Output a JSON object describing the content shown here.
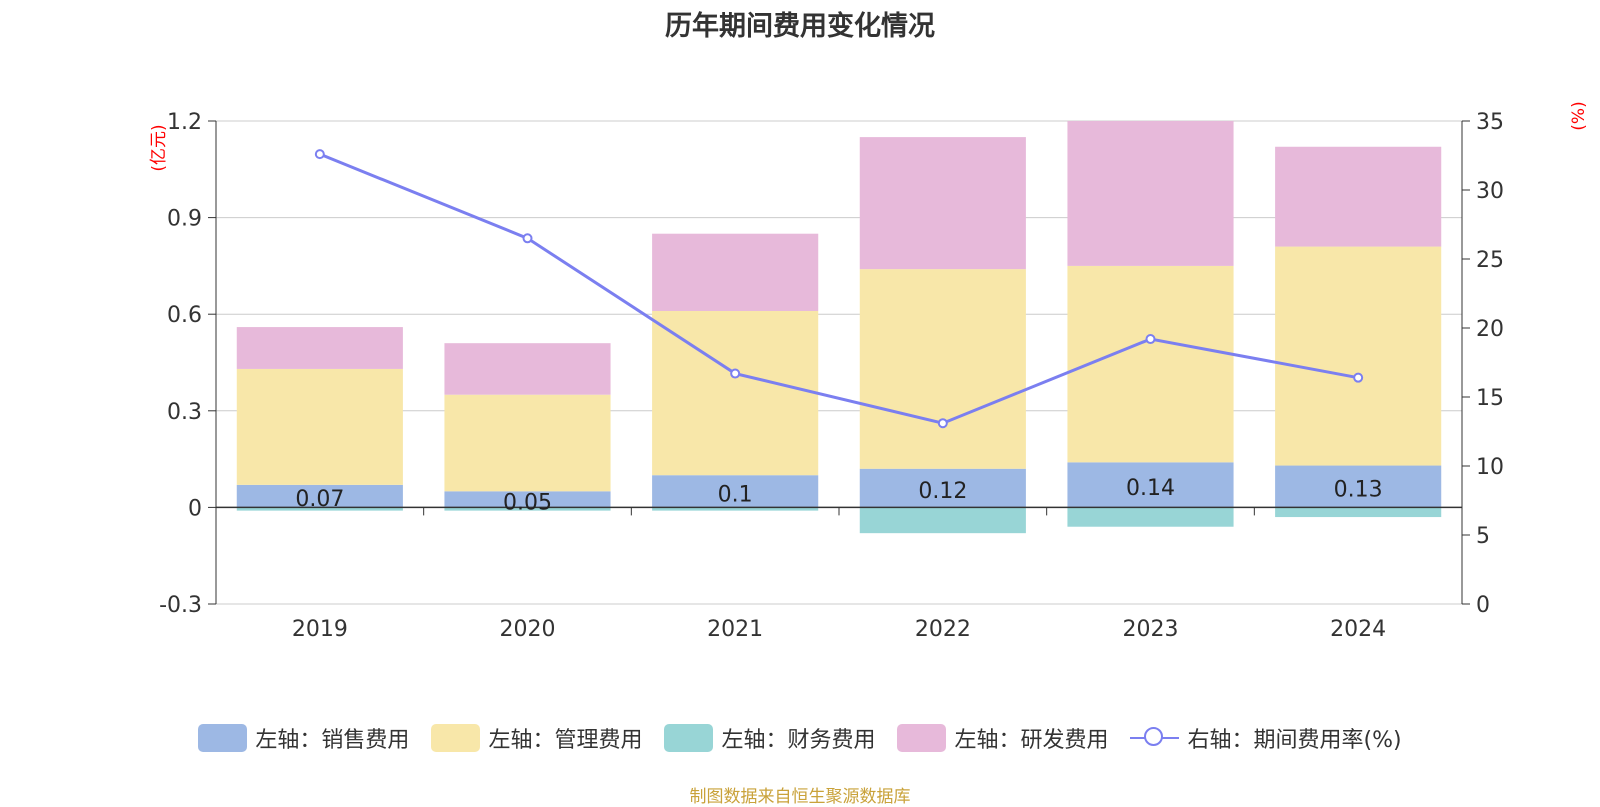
{
  "title": "历年期间费用变化情况",
  "source_note": "制图数据来自恒生聚源数据库",
  "colors": {
    "sales": "#9db8e4",
    "admin": "#f8e7a9",
    "finance": "#98d5d6",
    "rd": "#e7b9da",
    "rate_line": "#7b7ff0",
    "axis_unit": "#ff0000",
    "grid": "#cccccc",
    "text": "#333333",
    "source": "#c9a23a"
  },
  "legend": [
    {
      "label": "左轴：销售费用",
      "color": "#9db8e4",
      "type": "box"
    },
    {
      "label": "左轴：管理费用",
      "color": "#f8e7a9",
      "type": "box"
    },
    {
      "label": "左轴：财务费用",
      "color": "#98d5d6",
      "type": "box"
    },
    {
      "label": "左轴：研发费用",
      "color": "#e7b9da",
      "type": "box"
    },
    {
      "label": "右轴：期间费用率(%)",
      "color": "#7b7ff0",
      "type": "line"
    }
  ],
  "chart_data": {
    "type": "bar",
    "stacked": true,
    "title": "历年期间费用变化情况",
    "categories": [
      "2019",
      "2020",
      "2021",
      "2022",
      "2023",
      "2024"
    ],
    "left_axis": {
      "unit_label": "(亿元)",
      "ylim": [
        -0.3,
        1.2
      ],
      "ticks": [
        "1.2",
        "0.9",
        "0.6",
        "0.3",
        "0",
        "-0.3"
      ]
    },
    "right_axis": {
      "unit_label": "(%)",
      "ylim": [
        0,
        35
      ],
      "ticks": [
        "35",
        "30",
        "25",
        "20",
        "15",
        "10",
        "5",
        "0"
      ]
    },
    "series": [
      {
        "name": "左轴：销售费用",
        "axis": "left",
        "values": [
          0.07,
          0.05,
          0.1,
          0.12,
          0.14,
          0.13
        ],
        "data_labels": [
          "0.07",
          "0.05",
          "0.1",
          "0.12",
          "0.14",
          "0.13"
        ]
      },
      {
        "name": "左轴：管理费用",
        "axis": "left",
        "values": [
          0.36,
          0.3,
          0.51,
          0.62,
          0.61,
          0.68
        ]
      },
      {
        "name": "左轴：财务费用",
        "axis": "left",
        "values": [
          -0.01,
          -0.01,
          -0.01,
          -0.08,
          -0.06,
          -0.03
        ]
      },
      {
        "name": "左轴：研发费用",
        "axis": "left",
        "values": [
          0.13,
          0.16,
          0.24,
          0.41,
          0.45,
          0.31
        ]
      },
      {
        "name": "右轴：期间费用率(%)",
        "axis": "right",
        "type": "line",
        "values": [
          32.6,
          26.5,
          16.7,
          13.1,
          19.2,
          16.4
        ]
      }
    ],
    "grid": true,
    "legend_position": "bottom"
  }
}
